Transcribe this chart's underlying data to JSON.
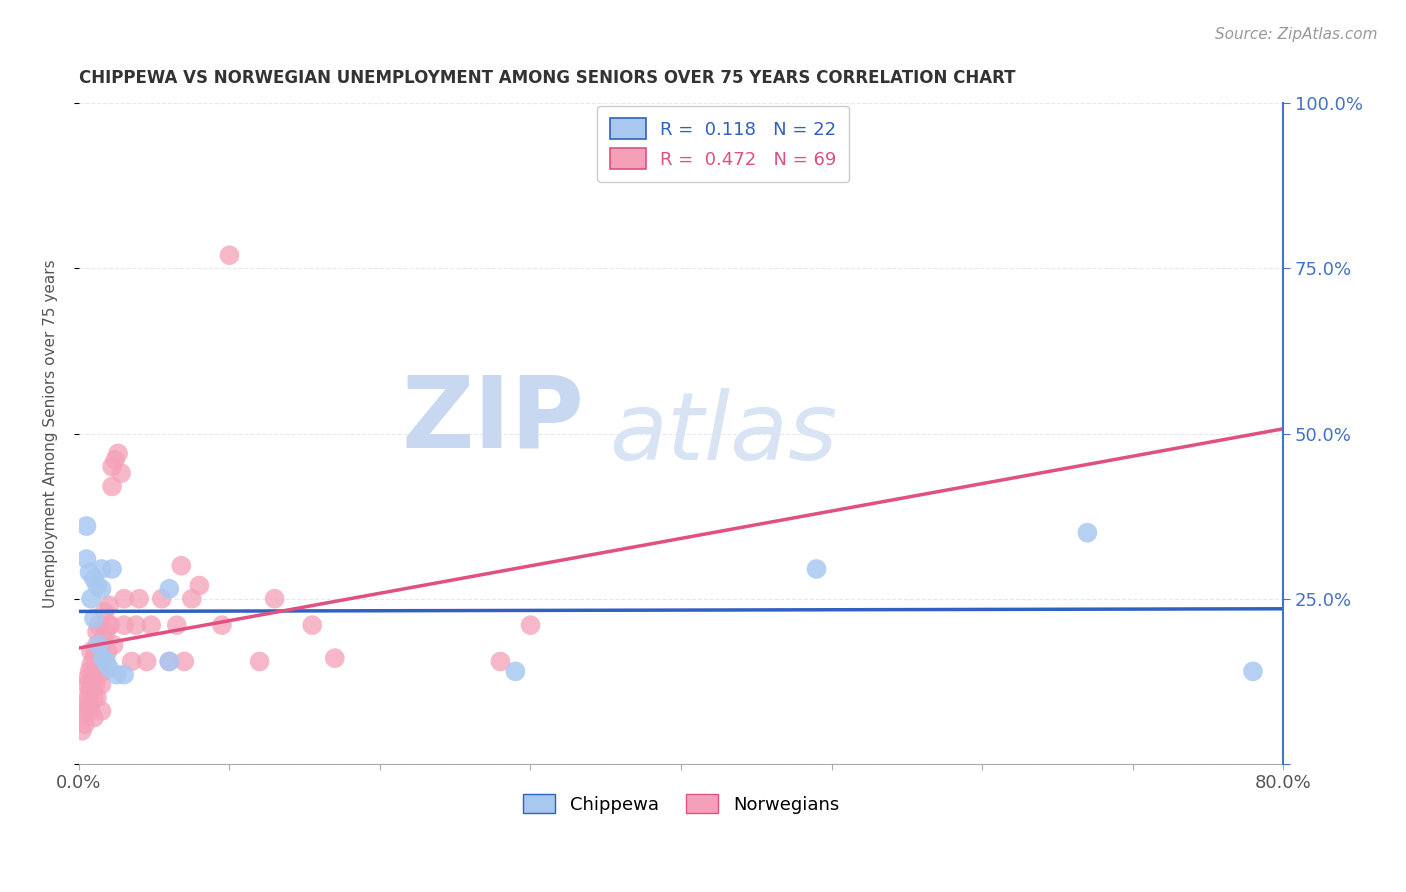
{
  "title": "CHIPPEWA VS NORWEGIAN UNEMPLOYMENT AMONG SENIORS OVER 75 YEARS CORRELATION CHART",
  "source": "Source: ZipAtlas.com",
  "ylabel": "Unemployment Among Seniors over 75 years",
  "xlim": [
    0.0,
    0.8
  ],
  "ylim": [
    0.0,
    1.0
  ],
  "chippewa_color": "#a8c8f0",
  "norwegian_color": "#f4a0b8",
  "chippewa_line_color": "#3060c0",
  "norwegian_line_color": "#e05080",
  "diagonal_color": "#e0a0b0",
  "R_chippewa": 0.118,
  "N_chippewa": 22,
  "R_norwegian": 0.472,
  "N_norwegian": 69,
  "chippewa_x": [
    0.005,
    0.005,
    0.007,
    0.008,
    0.01,
    0.01,
    0.012,
    0.013,
    0.015,
    0.015,
    0.016,
    0.018,
    0.02,
    0.022,
    0.025,
    0.03,
    0.06,
    0.06,
    0.29,
    0.49,
    0.67,
    0.78
  ],
  "chippewa_y": [
    0.36,
    0.31,
    0.29,
    0.25,
    0.28,
    0.22,
    0.27,
    0.18,
    0.295,
    0.265,
    0.16,
    0.155,
    0.145,
    0.295,
    0.135,
    0.135,
    0.265,
    0.155,
    0.14,
    0.295,
    0.35,
    0.14
  ],
  "norwegian_x": [
    0.002,
    0.003,
    0.004,
    0.004,
    0.005,
    0.005,
    0.006,
    0.006,
    0.007,
    0.007,
    0.007,
    0.008,
    0.008,
    0.008,
    0.008,
    0.009,
    0.009,
    0.01,
    0.01,
    0.01,
    0.01,
    0.011,
    0.011,
    0.012,
    0.012,
    0.012,
    0.012,
    0.013,
    0.013,
    0.014,
    0.015,
    0.015,
    0.015,
    0.016,
    0.016,
    0.017,
    0.018,
    0.019,
    0.02,
    0.02,
    0.021,
    0.022,
    0.022,
    0.023,
    0.024,
    0.026,
    0.028,
    0.03,
    0.03,
    0.035,
    0.038,
    0.04,
    0.045,
    0.048,
    0.055,
    0.06,
    0.065,
    0.068,
    0.07,
    0.075,
    0.08,
    0.095,
    0.1,
    0.12,
    0.13,
    0.155,
    0.17,
    0.28,
    0.3
  ],
  "norwegian_y": [
    0.05,
    0.07,
    0.06,
    0.09,
    0.08,
    0.12,
    0.1,
    0.13,
    0.09,
    0.11,
    0.14,
    0.12,
    0.15,
    0.17,
    0.08,
    0.11,
    0.13,
    0.07,
    0.1,
    0.14,
    0.16,
    0.12,
    0.17,
    0.1,
    0.13,
    0.18,
    0.2,
    0.14,
    0.21,
    0.17,
    0.08,
    0.12,
    0.16,
    0.14,
    0.19,
    0.23,
    0.2,
    0.17,
    0.24,
    0.21,
    0.21,
    0.45,
    0.42,
    0.18,
    0.46,
    0.47,
    0.44,
    0.25,
    0.21,
    0.155,
    0.21,
    0.25,
    0.155,
    0.21,
    0.25,
    0.155,
    0.21,
    0.3,
    0.155,
    0.25,
    0.27,
    0.21,
    0.77,
    0.155,
    0.25,
    0.21,
    0.16,
    0.155,
    0.21
  ],
  "background_color": "#ffffff",
  "grid_color": "#e8e8e8",
  "watermark_zip_color": "#c8d8f0",
  "watermark_atlas_color": "#d8e4f4"
}
